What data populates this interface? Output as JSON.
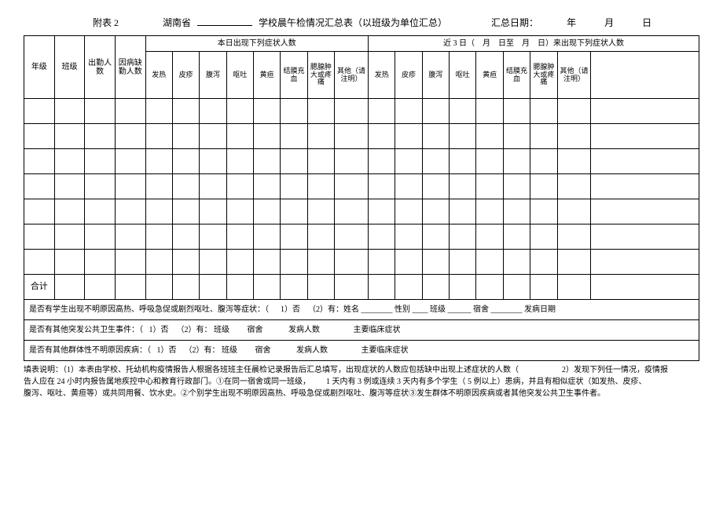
{
  "header": {
    "attachment": "附表 2",
    "province": "湖南省",
    "title_after": "学校晨午检情况汇总表（以班级为单位汇总）",
    "summary_date_label": "汇总日期：",
    "year": "年",
    "month": "月",
    "day": "日"
  },
  "columns": {
    "grade": "年级",
    "class": "班级",
    "attendance_count": "出勤人数",
    "sick_absent_count": "因病缺勤人数",
    "today_header": "本日出现下列症状人数",
    "recent3_header_pre": "近 3 日（",
    "recent3_header_m1": "月",
    "recent3_header_d1": "日至",
    "recent3_header_m2": "月",
    "recent3_header_d2": "日）来出现下列症状人数",
    "fever": "发热",
    "rash": "皮疹",
    "diarrhea": "腹泻",
    "vomit": "呕吐",
    "jaundice": "黄疸",
    "conjunctival": "结膜充血",
    "parotid": "腮腺肿大或疼痛",
    "other": "其他（请注明）",
    "total": "合计"
  },
  "footer": {
    "q1_pre": "是否有学生出现不明原因高热、呼吸急促或剧烈呕吐、腹泻等症状：（",
    "q1_no": "1）否",
    "q1_yes": "（2）有：姓名",
    "q1_sex": "性别",
    "q1_class": "班级",
    "q1_dorm": "宿舍",
    "q1_onset": "发病日期",
    "q2_pre": "是否有其他突发公共卫生事件：（",
    "q2_no": "1）否",
    "q2_yes": "（2）有：  班级",
    "q2_dorm": "宿舍",
    "q2_count": "发病人数",
    "q2_sym": "主要临床症状",
    "q3_pre": "是否有其他群体性不明原因疾病：（",
    "q3_no": "1）否",
    "q3_yes": "（2）有：  班级",
    "q3_dorm": "宿舍",
    "q3_count": "发病人数",
    "q3_sym": "主要临床症状"
  },
  "notes": {
    "line1_a": "填表说明：（1）本表由学校、托幼机构疫情报告人根据各班班主任晨检记录报告后汇总填写，出现症状的人数应包括缺中出现上述症状的人数（",
    "line1_b": "2）发现下列任一情况，疫情报",
    "line2_a": "告人应在  24 小时内报告属地疾控中心和教育行政部门。①在同一宿舍或同一班级，",
    "line2_b": "1 天内有  3 例或连续  3 天内有多个学生（  5 例以上）患病，并且有相似症状（如发热、皮疹、",
    "line3": "腹泻、呕吐、黄疸等）或共同用餐、饮水史。②个别学生出现不明原因高热、呼吸急促或剧烈呕吐、腹泻等症状③发生群体不明原因疾病或者其他突发公共卫生事件者。"
  },
  "layout": {
    "data_rows": 7,
    "col_count": 21
  }
}
